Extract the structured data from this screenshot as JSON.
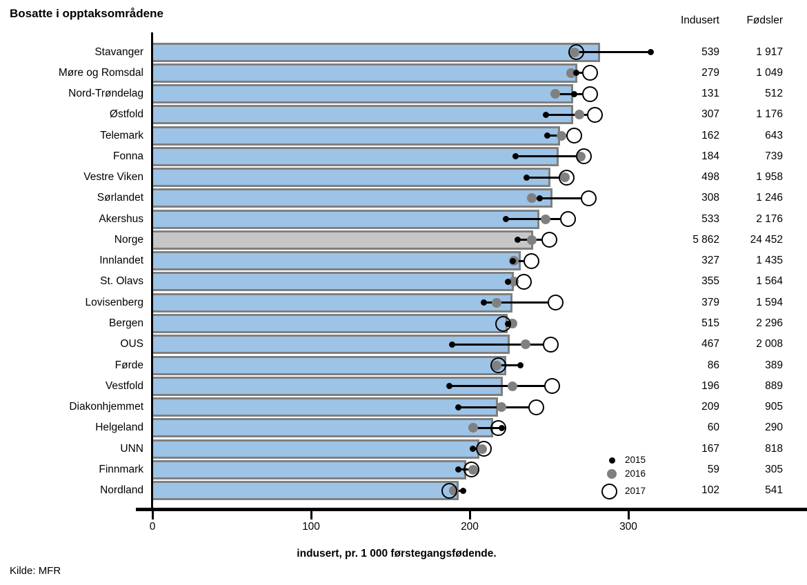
{
  "header": {
    "title": "Bosatte i opptaksområdene",
    "col_indusert": "Indusert",
    "col_fodsler": "Fødsler"
  },
  "footer": {
    "source": "Kilde: MFR"
  },
  "legend": [
    {
      "year": "2015",
      "marker": "small-black-dot"
    },
    {
      "year": "2016",
      "marker": "gray-dot"
    },
    {
      "year": "2017",
      "marker": "open-circle"
    }
  ],
  "colors": {
    "bar_fill": "#9DC3E6",
    "bar_total_fill": "#C6C6C6",
    "bar_border": "#7F7F7F",
    "dot_2015": "#000000",
    "dot_2016": "#808080",
    "circle_2017_stroke": "#000000"
  },
  "chart_data": {
    "type": "bar",
    "orientation": "horizontal",
    "title": "Bosatte i opptaksområdene",
    "xlabel": "indusert, pr. 1 000  førstegangsfødende.",
    "xlim": [
      0,
      410
    ],
    "xticks": [
      0,
      100,
      200,
      300
    ],
    "legend_position": "bottom-right-inside",
    "grid": false,
    "highlight_category": "Norge",
    "categories": [
      "Stavanger",
      "Møre og Romsdal",
      "Nord-Trøndelag",
      "Østfold",
      "Telemark",
      "Fonna",
      "Vestre Viken",
      "Sørlandet",
      "Akershus",
      "Norge",
      "Innlandet",
      "St. Olavs",
      "Lovisenberg",
      "Bergen",
      "OUS",
      "Førde",
      "Vestfold",
      "Diakonhjemmet",
      "Helgeland",
      "UNN",
      "Finnmark",
      "Nordland"
    ],
    "bar_values": [
      282,
      268,
      265,
      265,
      257,
      256,
      251,
      252,
      244,
      240,
      232,
      228,
      227,
      224,
      225,
      223,
      221,
      218,
      215,
      206,
      198,
      193
    ],
    "series": [
      {
        "name": "2015",
        "values": [
          314,
          267,
          266,
          248,
          249,
          229,
          236,
          244,
          223,
          230,
          227,
          224,
          209,
          224,
          189,
          232,
          187,
          193,
          220,
          202,
          193,
          196
        ]
      },
      {
        "name": "2016",
        "values": [
          266,
          264,
          254,
          269,
          258,
          270,
          260,
          239,
          248,
          239,
          228,
          228,
          217,
          227,
          235,
          217,
          227,
          220,
          202,
          208,
          202,
          190
        ]
      },
      {
        "name": "2017",
        "values": [
          267,
          276,
          276,
          279,
          266,
          272,
          261,
          275,
          262,
          250,
          239,
          234,
          254,
          221,
          251,
          218,
          252,
          242,
          218,
          209,
          201,
          187
        ]
      }
    ],
    "table": {
      "indusert": [
        "539",
        "279",
        "131",
        "307",
        "162",
        "184",
        "498",
        "308",
        "533",
        "5 862",
        "327",
        "355",
        "379",
        "515",
        "467",
        "86",
        "196",
        "209",
        "60",
        "167",
        "59",
        "102"
      ],
      "fodsler": [
        "1 917",
        "1 049",
        "512",
        "1 176",
        "643",
        "739",
        "1 958",
        "1 246",
        "2 176",
        "24 452",
        "1 435",
        "1 564",
        "1 594",
        "2 296",
        "2 008",
        "389",
        "889",
        "905",
        "290",
        "818",
        "305",
        "541"
      ]
    }
  }
}
